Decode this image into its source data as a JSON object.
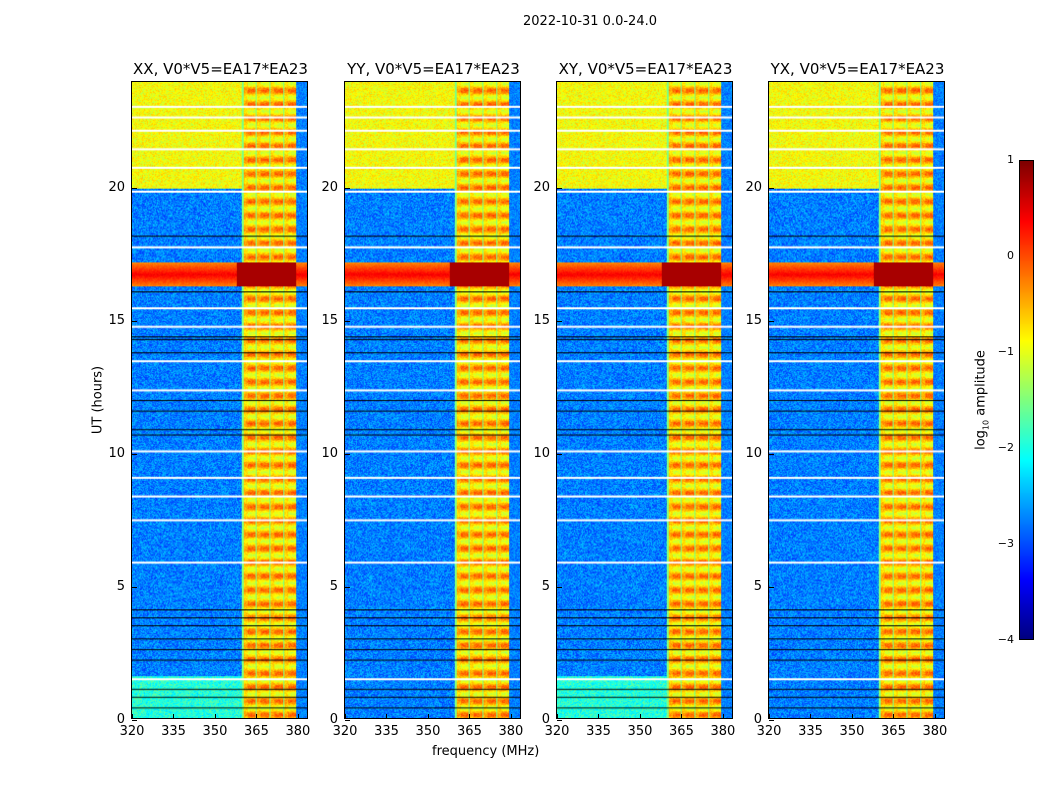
{
  "suptitle": "2022-10-31 0.0-24.0",
  "chart_data": {
    "type": "heatmap",
    "xlabel": "frequency (MHz)",
    "ylabel": "UT (hours)",
    "xlim": [
      320,
      384
    ],
    "ylim": [
      0,
      24
    ],
    "xticks": [
      "320",
      "335",
      "350",
      "365",
      "380"
    ],
    "xtick_values": [
      320,
      335,
      350,
      365,
      380
    ],
    "yticks": [
      "0",
      "5",
      "10",
      "15",
      "20"
    ],
    "ytick_values": [
      0,
      5,
      10,
      15,
      20
    ],
    "panels": [
      {
        "title": "XX, V0*V5=EA17*EA23"
      },
      {
        "title": "YY, V0*V5=EA17*EA23"
      },
      {
        "title": "XY, V0*V5=EA17*EA23"
      },
      {
        "title": "YX, V0*V5=EA17*EA23"
      }
    ],
    "colorbar": {
      "label": "log10 amplitude",
      "label_main": "log",
      "label_sub": "10",
      "label_rest": " amplitude",
      "range": [
        -4,
        1
      ],
      "ticks": [
        "1",
        "0",
        "−1",
        "−2",
        "−3",
        "−4"
      ],
      "tick_values": [
        1,
        0,
        -1,
        -2,
        -3,
        -4
      ],
      "colormap": "jet"
    },
    "features": {
      "rfi_band_mhz": [
        360,
        380
      ],
      "high_amplitude_hours": [
        16.3,
        17.2
      ],
      "elevated_hours": [
        20,
        24
      ]
    }
  }
}
